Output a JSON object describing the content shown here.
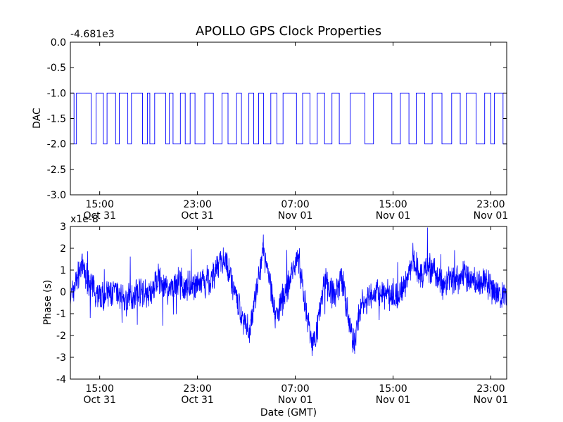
{
  "chart_data": {
    "title": "APOLLO GPS Clock Properties",
    "xlabel": "Date (GMT)",
    "x_tick_labels": [
      {
        "time": "15:00",
        "date": "Oct 31"
      },
      {
        "time": "23:00",
        "date": "Oct 31"
      },
      {
        "time": "07:00",
        "date": "Nov 01"
      },
      {
        "time": "15:00",
        "date": "Nov 01"
      },
      {
        "time": "23:00",
        "date": "Nov 01"
      }
    ],
    "xlim_hours_from_oct31_0000": [
      12.6,
      48.3
    ],
    "panels": [
      {
        "type": "line",
        "ylabel": "DAC",
        "offset_label": "-4.681e3",
        "ylim": [
          -3.0,
          0.0
        ],
        "y_tick_labels": [
          "0.0",
          "-0.5",
          "-1.0",
          "-1.5",
          "-2.0",
          "-2.5",
          "-3.0"
        ],
        "color": "#0000ff",
        "grid": false,
        "series_hours": [
          12.6,
          12.9,
          13.1,
          14.3,
          14.7,
          15.3,
          15.6,
          16.0,
          16.3,
          16.6,
          17.3,
          17.6,
          17.8,
          18.5,
          18.9,
          19.1,
          19.5,
          20.2,
          20.4,
          20.7,
          21.0,
          21.6,
          22.0,
          22.4,
          22.8,
          23.6,
          24.3,
          25.0,
          25.5,
          26.2,
          26.6,
          27.2,
          27.6,
          28.0,
          28.4,
          29.0,
          29.5,
          30.0,
          31.1,
          31.6,
          32.2,
          32.8,
          33.4,
          34.0,
          34.6,
          35.5,
          36.0,
          36.7,
          37.4,
          38.1,
          38.9,
          39.6,
          40.3,
          40.9,
          41.6,
          42.2,
          43.0,
          43.8,
          44.5,
          45.0,
          45.8,
          46.5,
          47.0,
          47.3,
          48.0,
          48.3
        ],
        "series_values": [
          -1.0,
          -2.0,
          -1.0,
          -2.0,
          -1.0,
          -2.0,
          -1.0,
          -1.0,
          -2.0,
          -1.0,
          -2.0,
          -1.0,
          -1.0,
          -2.0,
          -1.0,
          -2.0,
          -1.0,
          -1.0,
          -2.0,
          -1.0,
          -2.0,
          -1.0,
          -2.0,
          -1.0,
          -2.0,
          -1.0,
          -2.0,
          -1.0,
          -2.0,
          -1.0,
          -2.0,
          -1.0,
          -2.0,
          -1.0,
          -2.0,
          -1.0,
          -2.0,
          -1.0,
          -2.0,
          -1.0,
          -2.0,
          -1.0,
          -2.0,
          -1.0,
          -2.0,
          -1.0,
          -1.0,
          -2.0,
          -1.0,
          -1.0,
          -2.0,
          -1.0,
          -2.0,
          -1.0,
          -2.0,
          -1.0,
          -2.0,
          -1.0,
          -2.0,
          -1.0,
          -2.0,
          -1.0,
          -2.0,
          -1.0,
          -2.0,
          -1.0
        ]
      },
      {
        "type": "line",
        "ylabel": "Phase (s)",
        "offset_label": "x1e-8",
        "ylim": [
          -4,
          3
        ],
        "y_tick_labels": [
          "3",
          "2",
          "1",
          "0",
          "-1",
          "-2",
          "-3",
          "-4"
        ],
        "color": "#0000ff",
        "grid": false,
        "trend_hours": [
          12.6,
          13.5,
          14.3,
          15.2,
          16.2,
          17.2,
          18.2,
          19.0,
          19.8,
          20.5,
          21.3,
          22.0,
          23.0,
          24.0,
          25.0,
          25.6,
          26.3,
          27.2,
          27.8,
          28.4,
          29.0,
          29.4,
          30.0,
          30.6,
          31.2,
          31.8,
          32.4,
          32.8,
          33.4,
          34.2,
          34.8,
          35.2,
          35.8,
          36.4,
          37.0,
          38.0,
          39.0,
          40.0,
          40.6,
          41.2,
          42.0,
          43.0,
          44.0,
          45.0,
          45.8,
          46.6,
          47.4,
          48.3
        ],
        "trend_values": [
          -0.3,
          1.2,
          0.2,
          -0.2,
          0.0,
          -0.4,
          0.1,
          -0.2,
          0.6,
          0.1,
          0.4,
          0.3,
          0.3,
          0.4,
          1.6,
          1.0,
          -0.6,
          -1.9,
          -0.2,
          2.0,
          0.3,
          -1.2,
          -0.3,
          0.6,
          1.8,
          -0.5,
          -2.5,
          -1.6,
          0.6,
          -0.2,
          0.7,
          -0.8,
          -2.4,
          -0.6,
          -0.3,
          0.0,
          -0.3,
          0.3,
          1.5,
          0.7,
          1.1,
          0.4,
          0.6,
          0.8,
          0.4,
          0.5,
          -0.2,
          -0.2
        ]
      }
    ]
  }
}
